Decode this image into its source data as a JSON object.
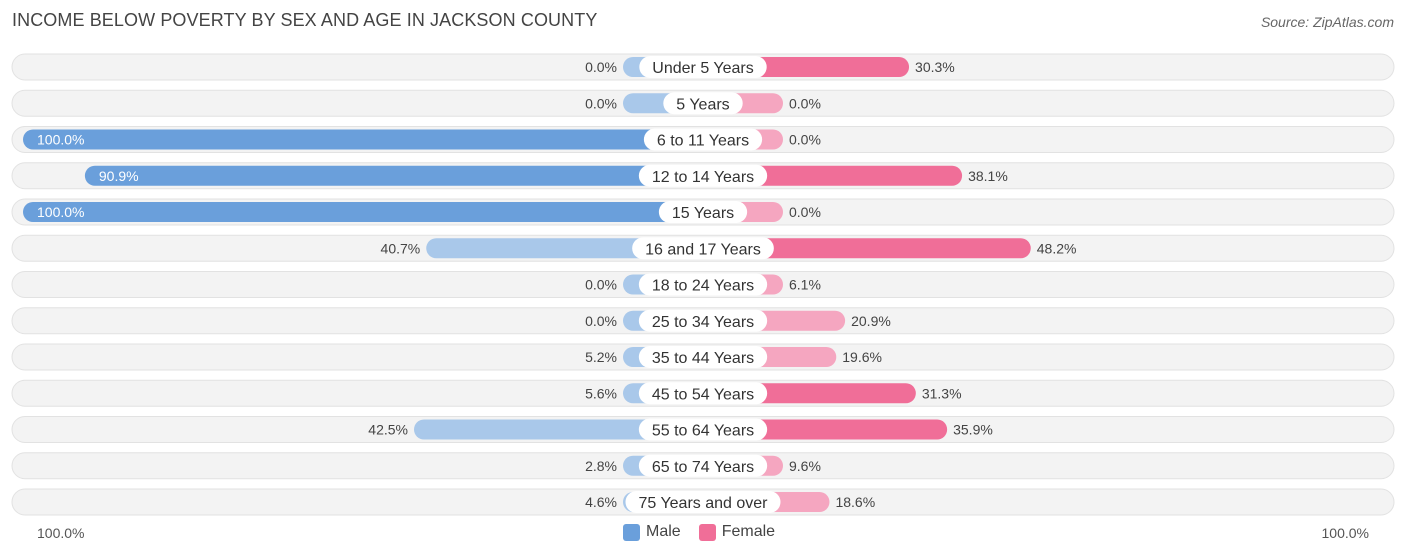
{
  "title": "INCOME BELOW POVERTY BY SEX AND AGE IN JACKSON COUNTY",
  "source": "Source: ZipAtlas.com",
  "axis": {
    "left_label": "100.0%",
    "right_label": "100.0%"
  },
  "legend": {
    "male_label": "Male",
    "female_label": "Female"
  },
  "colors": {
    "male_light": "#a9c8ea",
    "male_dark": "#6a9fdb",
    "female_light": "#f5a6c0",
    "female_dark": "#f06e98",
    "track": "#f1f1f1"
  },
  "chart_data": {
    "type": "bar",
    "orientation": "horizontal-diverging",
    "title": "INCOME BELOW POVERTY BY SEX AND AGE IN JACKSON COUNTY",
    "xlim": [
      -100,
      100
    ],
    "unit": "%",
    "categories": [
      "Under 5 Years",
      "5 Years",
      "6 to 11 Years",
      "12 to 14 Years",
      "15 Years",
      "16 and 17 Years",
      "18 to 24 Years",
      "25 to 34 Years",
      "35 to 44 Years",
      "45 to 54 Years",
      "55 to 64 Years",
      "65 to 74 Years",
      "75 Years and over"
    ],
    "series": [
      {
        "name": "Male",
        "values": [
          0.0,
          0.0,
          100.0,
          90.9,
          100.0,
          40.7,
          0.0,
          0.0,
          5.2,
          5.6,
          42.5,
          2.8,
          4.6
        ]
      },
      {
        "name": "Female",
        "values": [
          30.3,
          0.0,
          0.0,
          38.1,
          0.0,
          48.2,
          6.1,
          20.9,
          19.6,
          31.3,
          35.9,
          9.6,
          18.6
        ]
      }
    ],
    "labels": {
      "male": [
        "0.0%",
        "0.0%",
        "100.0%",
        "90.9%",
        "100.0%",
        "40.7%",
        "0.0%",
        "0.0%",
        "5.2%",
        "5.6%",
        "42.5%",
        "2.8%",
        "4.6%"
      ],
      "female": [
        "30.3%",
        "0.0%",
        "0.0%",
        "38.1%",
        "0.0%",
        "48.2%",
        "6.1%",
        "20.9%",
        "19.6%",
        "31.3%",
        "35.9%",
        "9.6%",
        "18.6%"
      ]
    }
  }
}
